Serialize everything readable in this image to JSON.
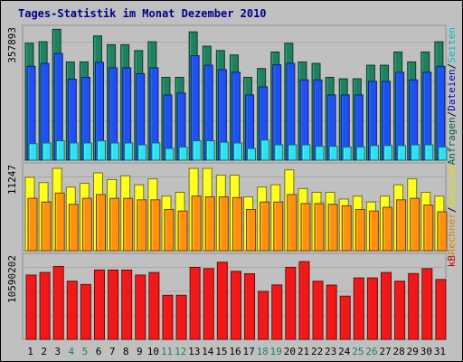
{
  "chart_data": {
    "type": "bar",
    "title": "Tages-Statistik im Monat Dezember 2010",
    "categories": [
      "1",
      "2",
      "3",
      "4",
      "5",
      "6",
      "7",
      "8",
      "9",
      "10",
      "11",
      "12",
      "13",
      "14",
      "15",
      "16",
      "17",
      "18",
      "19",
      "20",
      "21",
      "22",
      "23",
      "24",
      "25",
      "26",
      "27",
      "28",
      "29",
      "30",
      "31"
    ],
    "weekend_days": [
      "4",
      "5",
      "11",
      "12",
      "18",
      "19",
      "25",
      "26"
    ],
    "panels": [
      {
        "id": "top",
        "ymax_label": "357893",
        "ymax": 357893,
        "right_labels": [
          {
            "text": "Anfragen",
            "color": "#006040"
          },
          {
            "text": "/",
            "color": "#000000"
          },
          {
            "text": "Dateien",
            "color": "#0000c0"
          },
          {
            "text": "/",
            "color": "#000000"
          },
          {
            "text": "Seiten",
            "color": "#00c0c0"
          }
        ],
        "series": [
          {
            "name": "Anfragen",
            "color": "#208060",
            "values": [
              319000,
              323000,
              357000,
              268000,
              268000,
              339000,
              315000,
              315000,
              299000,
              323000,
              226000,
              226000,
              350000,
              311000,
              299000,
              287000,
              226000,
              250000,
              295000,
              319000,
              268000,
              264000,
              226000,
              222000,
              222000,
              259000,
              259000,
              295000,
              268000,
              295000,
              323000
            ]
          },
          {
            "name": "Dateien",
            "color": "#2050f0",
            "values": [
              256000,
              264000,
              291000,
              221000,
              226000,
              267000,
              252000,
              252000,
              236000,
              252000,
              178000,
              183000,
              285000,
              259000,
              247000,
              240000,
              178000,
              200000,
              260000,
              264000,
              219000,
              219000,
              178000,
              178000,
              178000,
              215000,
              215000,
              240000,
              219000,
              240000,
              256000
            ]
          },
          {
            "name": "Seiten",
            "color": "#30e0f0",
            "values": [
              45000,
              47000,
              53000,
              47000,
              47000,
              53000,
              47000,
              47000,
              42000,
              47000,
              32000,
              36000,
              53000,
              53000,
              49000,
              47000,
              32000,
              55000,
              42000,
              42000,
              42000,
              38000,
              38000,
              36000,
              36000,
              40000,
              40000,
              40000,
              42000,
              42000,
              36000
            ]
          }
        ]
      },
      {
        "id": "middle",
        "ymax_label": "11247",
        "ymax": 11247,
        "right_labels": [
          {
            "text": "Rechner",
            "color": "#e08000"
          },
          {
            "text": "/",
            "color": "#000000"
          },
          {
            "text": "Besuche",
            "color": "#e0e000"
          }
        ],
        "series": [
          {
            "name": "Besuche",
            "color": "#ffff20",
            "values": [
              9800,
              9100,
              11000,
              8500,
              9000,
              10400,
              9500,
              10000,
              8800,
              9600,
              7300,
              7800,
              11000,
              11000,
              10100,
              10100,
              7200,
              8500,
              8800,
              10800,
              8300,
              7800,
              7800,
              6900,
              7300,
              6500,
              7300,
              8800,
              9600,
              7800,
              7300
            ]
          },
          {
            "name": "Rechner",
            "color": "#ff9010",
            "values": [
              7000,
              6500,
              7700,
              6200,
              7000,
              7500,
              7000,
              7000,
              6800,
              6800,
              5500,
              5300,
              7300,
              7200,
              7200,
              7100,
              5500,
              6500,
              6500,
              7500,
              6300,
              6300,
              6200,
              6000,
              5500,
              5300,
              5800,
              6800,
              7000,
              6100,
              5200
            ]
          }
        ]
      },
      {
        "id": "bottom",
        "ymax_label": "10590202",
        "ymax": 10590202,
        "right_labels": [
          {
            "text": "kB",
            "color": "#c00000"
          }
        ],
        "series": [
          {
            "name": "kB",
            "color": "#f01818",
            "values": [
              8270000,
              8600000,
              9370000,
              7480000,
              7060000,
              8920000,
              8920000,
              8920000,
              8270000,
              8600000,
              5670000,
              5670000,
              9260000,
              9100000,
              9920000,
              8750000,
              8440000,
              6170000,
              7000000,
              9260000,
              10000000,
              7480000,
              6980000,
              5560000,
              7900000,
              7900000,
              8600000,
              7480000,
              8460000,
              9100000,
              7700000
            ]
          }
        ]
      }
    ]
  }
}
